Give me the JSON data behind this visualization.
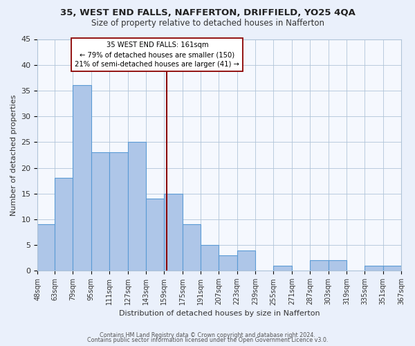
{
  "title": "35, WEST END FALLS, NAFFERTON, DRIFFIELD, YO25 4QA",
  "subtitle": "Size of property relative to detached houses in Nafferton",
  "xlabel": "Distribution of detached houses by size in Nafferton",
  "ylabel": "Number of detached properties",
  "bin_edges": [
    48,
    63,
    79,
    95,
    111,
    127,
    143,
    159,
    175,
    191,
    207,
    223,
    239,
    255,
    271,
    287,
    303,
    319,
    335,
    351,
    367
  ],
  "bin_labels": [
    "48sqm",
    "63sqm",
    "79sqm",
    "95sqm",
    "111sqm",
    "127sqm",
    "143sqm",
    "159sqm",
    "175sqm",
    "191sqm",
    "207sqm",
    "223sqm",
    "239sqm",
    "255sqm",
    "271sqm",
    "287sqm",
    "303sqm",
    "319sqm",
    "335sqm",
    "351sqm",
    "367sqm"
  ],
  "counts": [
    9,
    18,
    36,
    23,
    23,
    25,
    14,
    15,
    9,
    5,
    3,
    4,
    0,
    1,
    0,
    2,
    2,
    0,
    1,
    1
  ],
  "bar_color": "#aec6e8",
  "bar_edge_color": "#5b9bd5",
  "vline_x": 161,
  "vline_color": "#8b0000",
  "annotation_title": "35 WEST END FALLS: 161sqm",
  "annotation_line1": "← 79% of detached houses are smaller (150)",
  "annotation_line2": "21% of semi-detached houses are larger (41) →",
  "annotation_box_edge": "#8b0000",
  "ylim": [
    0,
    45
  ],
  "yticks": [
    0,
    5,
    10,
    15,
    20,
    25,
    30,
    35,
    40,
    45
  ],
  "footer1": "Contains HM Land Registry data © Crown copyright and database right 2024.",
  "footer2": "Contains public sector information licensed under the Open Government Licence v3.0.",
  "bg_color": "#eaf0fb",
  "plot_bg_color": "#f5f8fe"
}
